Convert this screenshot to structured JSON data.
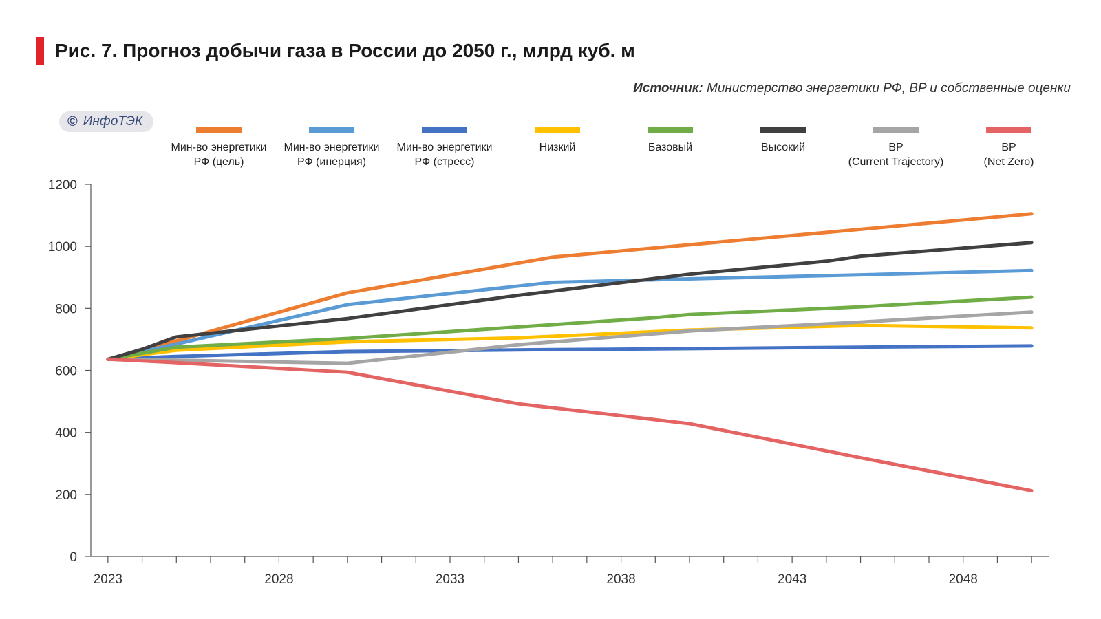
{
  "header": {
    "title": "Рис. 7. Прогноз добычи газа в России до 2050 г., млрд куб. м",
    "source_label": "Источник:",
    "source_text": "Министерство энергетики РФ, BP и собственные оценки",
    "badge_symbol": "©",
    "badge_text": "ИнфоТЭК",
    "accent_color": "#e2232a"
  },
  "chart_data": {
    "type": "line",
    "title": "Рис. 7. Прогноз добычи газа в России до 2050 г., млрд куб. м",
    "xlabel": "",
    "ylabel": "",
    "xlim": [
      2022.5,
      2050.5
    ],
    "ylim": [
      0,
      1200
    ],
    "yticks": [
      0,
      200,
      400,
      600,
      800,
      1000,
      1200
    ],
    "xtick_labels": [
      "2023",
      "2028",
      "2033",
      "2038",
      "2043",
      "2048"
    ],
    "grid": false,
    "legend_position": "top",
    "series": [
      {
        "name_lines": [
          "Мин-во энергетики",
          "РФ (цель)"
        ],
        "color": "#ed7d31",
        "x": [
          2023,
          2025,
          2030,
          2036,
          2040,
          2045,
          2050
        ],
        "values": [
          636,
          695,
          850,
          965,
          1005,
          1055,
          1105
        ]
      },
      {
        "name_lines": [
          "Мин-во энергетики",
          "РФ (инерция)"
        ],
        "color": "#5b9bd5",
        "x": [
          2023,
          2025,
          2030,
          2036,
          2040,
          2045,
          2050
        ],
        "values": [
          636,
          685,
          812,
          884,
          895,
          908,
          922
        ]
      },
      {
        "name_lines": [
          "Мин-во энергетики",
          "РФ (стресс)"
        ],
        "color": "#4472c4",
        "x": [
          2023,
          2025,
          2030,
          2036,
          2040,
          2045,
          2050
        ],
        "values": [
          636,
          645,
          661,
          667,
          670,
          675,
          679
        ]
      },
      {
        "name_lines": [
          "Низкий"
        ],
        "color": "#ffc000",
        "x": [
          2023,
          2025,
          2030,
          2035,
          2040,
          2045,
          2050
        ],
        "values": [
          636,
          665,
          692,
          705,
          730,
          745,
          737
        ]
      },
      {
        "name_lines": [
          "Базовый"
        ],
        "color": "#70ad47",
        "x": [
          2023,
          2025,
          2030,
          2035,
          2039,
          2040,
          2045,
          2050
        ],
        "values": [
          636,
          675,
          703,
          740,
          770,
          780,
          805,
          836
        ]
      },
      {
        "name_lines": [
          "Высокий"
        ],
        "color": "#404040",
        "x": [
          2023,
          2024,
          2025,
          2030,
          2035,
          2040,
          2044,
          2045,
          2050
        ],
        "values": [
          636,
          668,
          708,
          767,
          842,
          910,
          952,
          968,
          1012
        ]
      },
      {
        "name_lines": [
          "BP",
          "(Current Trajectory)"
        ],
        "color": "#a5a5a5",
        "x": [
          2023,
          2025,
          2030,
          2035,
          2040,
          2045,
          2050
        ],
        "values": [
          636,
          633,
          623,
          683,
          727,
          756,
          788
        ]
      },
      {
        "name_lines": [
          "BP",
          "(Net Zero)"
        ],
        "color": "#e46464",
        "x": [
          2023,
          2025,
          2030,
          2035,
          2040,
          2045,
          2050
        ],
        "values": [
          636,
          625,
          594,
          492,
          428,
          318,
          212
        ]
      }
    ]
  }
}
